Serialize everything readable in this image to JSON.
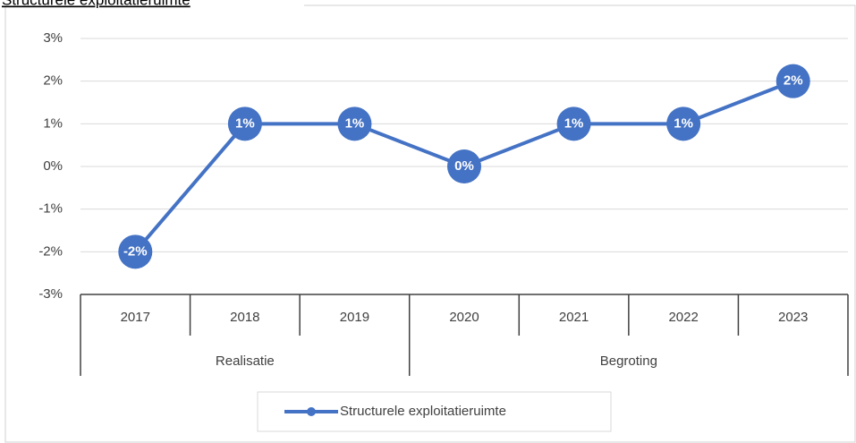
{
  "chart_data": {
    "type": "line",
    "title": "Structurele exploitatieruimte",
    "groups": [
      {
        "name": "Realisatie",
        "categories": [
          "2017",
          "2018",
          "2019"
        ]
      },
      {
        "name": "Begroting",
        "categories": [
          "2020",
          "2021",
          "2022",
          "2023"
        ]
      }
    ],
    "series": [
      {
        "name": "Structurele exploitatieruimte",
        "color": "#4472c4",
        "values": [
          -2,
          1,
          1,
          0,
          1,
          1,
          2
        ],
        "value_labels": [
          "-2%",
          "1%",
          "1%",
          "0%",
          "1%",
          "1%",
          "2%"
        ]
      }
    ],
    "ylim": [
      -3,
      3
    ],
    "yticks": [
      {
        "value": -3,
        "label": "-3%"
      },
      {
        "value": -2,
        "label": "-2%"
      },
      {
        "value": -1,
        "label": "-1%"
      },
      {
        "value": 0,
        "label": "0%"
      },
      {
        "value": 1,
        "label": "1%"
      },
      {
        "value": 2,
        "label": "2%"
      },
      {
        "value": 3,
        "label": "3%"
      }
    ],
    "grid": true,
    "legend": "bottom"
  }
}
